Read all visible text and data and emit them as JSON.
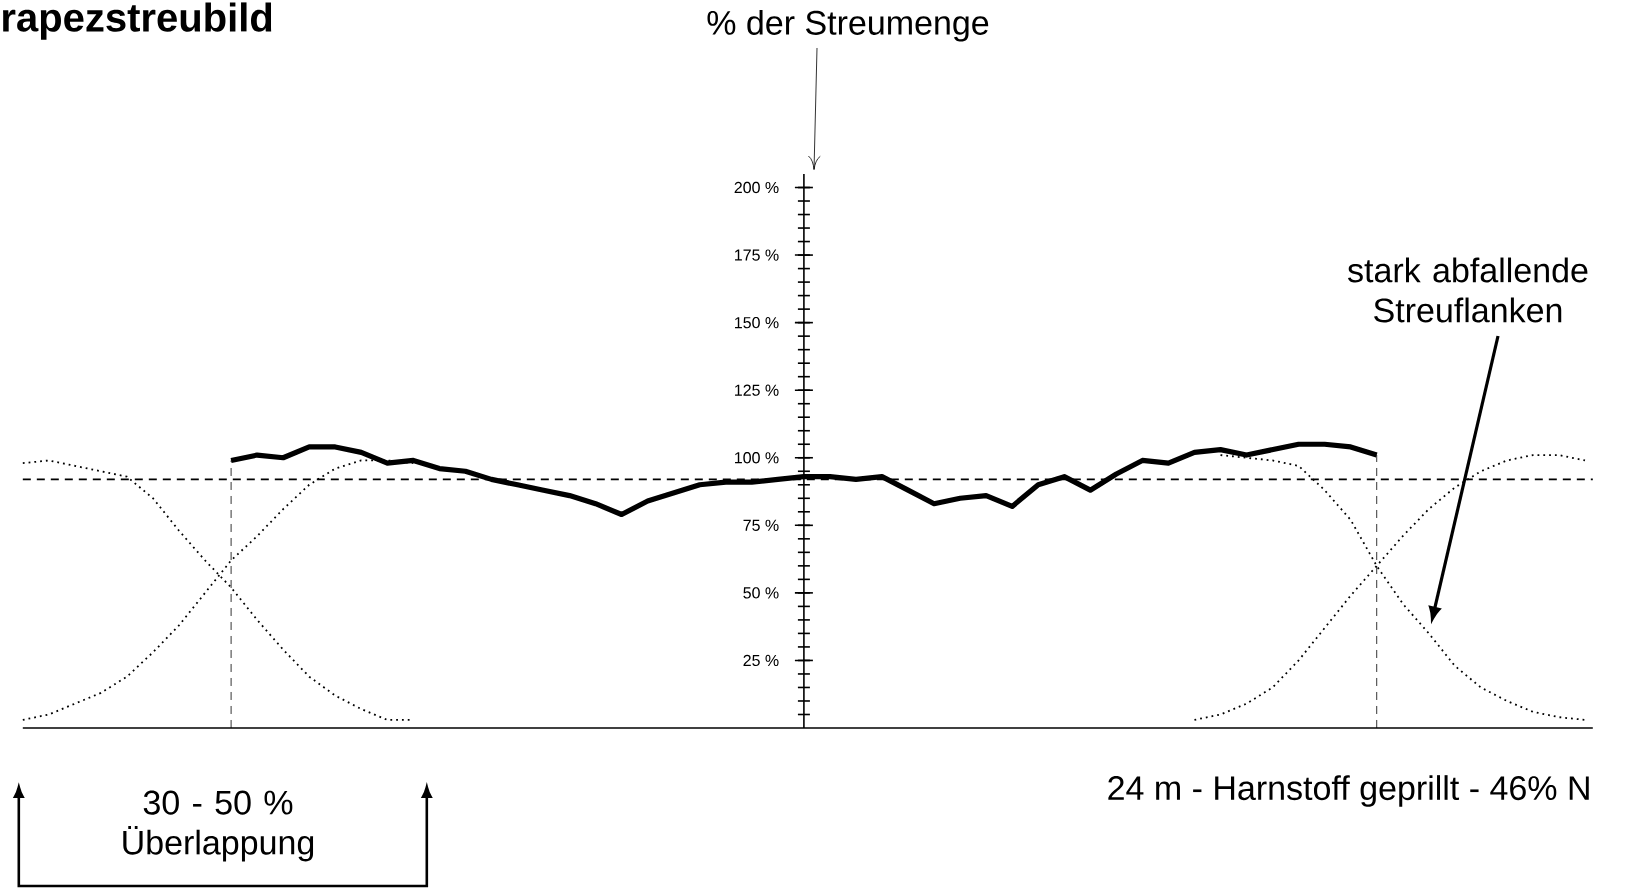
{
  "chart_data": {
    "type": "line",
    "title": "rapezstreubild",
    "ylabel": "% der Streumenge",
    "categories": [
      null,
      null,
      null,
      null,
      null,
      null,
      null,
      null,
      null,
      null,
      null,
      null,
      null,
      null,
      null,
      null,
      null,
      null,
      null,
      null,
      null,
      null,
      null,
      null,
      null,
      null,
      null,
      null,
      null,
      null,
      null,
      null,
      null,
      null,
      null,
      null,
      null,
      null,
      null,
      null,
      null,
      null,
      null,
      null,
      null,
      null,
      null,
      null,
      null,
      null,
      null,
      null,
      null,
      null,
      null,
      null,
      null,
      null,
      null,
      null,
      null
    ],
    "series": [
      {
        "color": "#000000",
        "line_style": "solid",
        "values": [
          null,
          null,
          null,
          null,
          null,
          null,
          null,
          null,
          99,
          101,
          100,
          104,
          104,
          102,
          98,
          99,
          96,
          95,
          92,
          90,
          88,
          86,
          83,
          79,
          84,
          87,
          90,
          91,
          91,
          92,
          93,
          93,
          92,
          93,
          88,
          83,
          85,
          86,
          82,
          90,
          93,
          88,
          94,
          99,
          98,
          102,
          103,
          101,
          103,
          105,
          105,
          104,
          101,
          null,
          null,
          null,
          null,
          null,
          null,
          null,
          null
        ]
      },
      {
        "color": "#000000",
        "line_style": "dotted",
        "values": [
          98,
          99,
          97,
          95,
          93,
          85,
          73,
          62,
          52,
          40,
          29,
          19,
          12,
          7,
          3,
          3,
          null,
          null,
          null,
          null,
          null,
          null,
          null,
          null,
          null,
          null,
          null,
          null,
          null,
          null,
          null,
          null,
          null,
          null,
          null,
          null,
          null,
          null,
          null,
          null,
          null,
          null,
          null,
          null,
          null,
          null,
          null,
          null,
          null,
          null,
          null,
          null,
          null,
          null,
          null,
          null,
          null,
          null,
          null,
          null,
          null
        ]
      },
      {
        "color": "#000000",
        "line_style": "dotted",
        "values": [
          3,
          5,
          9,
          13,
          19,
          28,
          38,
          50,
          62,
          71,
          81,
          90,
          96,
          99,
          99,
          98,
          null,
          null,
          null,
          null,
          null,
          null,
          null,
          null,
          null,
          null,
          null,
          null,
          null,
          null,
          null,
          null,
          null,
          null,
          null,
          null,
          null,
          null,
          null,
          null,
          null,
          null,
          null,
          null,
          null,
          null,
          null,
          null,
          null,
          null,
          null,
          null,
          null,
          null,
          null,
          null,
          null,
          null,
          null,
          null,
          null
        ]
      },
      {
        "color": "#000000",
        "line_style": "dotted",
        "values": [
          null,
          null,
          null,
          null,
          null,
          null,
          null,
          null,
          null,
          null,
          null,
          null,
          null,
          null,
          null,
          null,
          null,
          null,
          null,
          null,
          null,
          null,
          null,
          null,
          null,
          null,
          null,
          null,
          null,
          null,
          null,
          null,
          null,
          null,
          null,
          null,
          null,
          null,
          null,
          null,
          null,
          null,
          null,
          null,
          null,
          3,
          5,
          9,
          15,
          25,
          37,
          49,
          60,
          71,
          81,
          89,
          95,
          99,
          101,
          101,
          99
        ]
      },
      {
        "color": "#000000",
        "line_style": "dotted",
        "values": [
          null,
          null,
          null,
          null,
          null,
          null,
          null,
          null,
          null,
          null,
          null,
          null,
          null,
          null,
          null,
          null,
          null,
          null,
          null,
          null,
          null,
          null,
          null,
          null,
          null,
          null,
          null,
          null,
          null,
          null,
          null,
          null,
          null,
          null,
          null,
          null,
          null,
          null,
          null,
          null,
          null,
          null,
          null,
          null,
          null,
          null,
          101,
          100,
          99,
          97,
          88,
          77,
          60,
          46,
          35,
          23,
          15,
          10,
          6,
          4,
          3
        ]
      }
    ],
    "ylim": [
      0,
      205
    ],
    "yticks": [
      {
        "value": 25,
        "label": "25 %"
      },
      {
        "value": 50,
        "label": "50 %"
      },
      {
        "value": 75,
        "label": "75 %"
      },
      {
        "value": 100,
        "label": "100 %"
      },
      {
        "value": 125,
        "label": "125 %"
      },
      {
        "value": 150,
        "label": "150 %"
      },
      {
        "value": 175,
        "label": "175 %"
      },
      {
        "value": 200,
        "label": "200 %"
      }
    ],
    "tick_labels": "y",
    "ref_lines": [
      {
        "axis": "y",
        "value": 92,
        "line_style": "dashed"
      }
    ],
    "annotations": [
      "stark abfallende Streuflanken",
      "30 - 50 % Überlappung",
      "24 m - Harnstoff geprillt - 46% N"
    ],
    "grid": false,
    "marker": "none"
  }
}
